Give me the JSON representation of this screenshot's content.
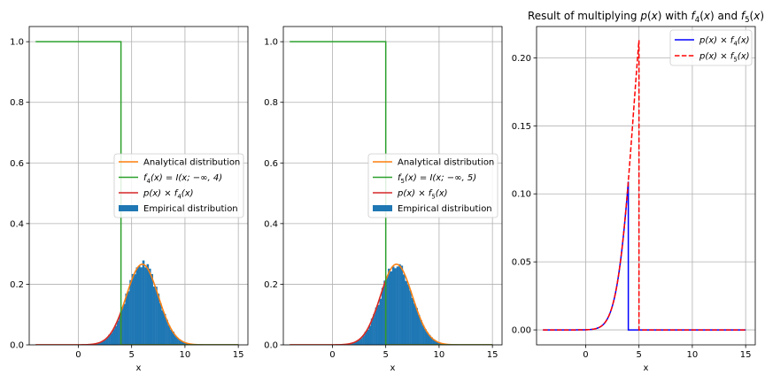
{
  "figure": {
    "background": "#ffffff"
  },
  "chart_data": [
    {
      "type": "histogram+line",
      "title": "",
      "xlabel": "x",
      "ylabel": "",
      "xlim": [
        -4.6,
        15.9
      ],
      "ylim": [
        0,
        1.05
      ],
      "xticks": [
        "0",
        "5",
        "10",
        "15"
      ],
      "yticks": [
        "0.0",
        "0.2",
        "0.4",
        "0.6",
        "0.8",
        "1.0"
      ],
      "grid": true,
      "legend_position": "center-right",
      "gaussian": {
        "mean": 6,
        "std": 1.5,
        "x_from": -4,
        "x_to": 15
      },
      "threshold": 4,
      "series": [
        {
          "name": "Analytical distribution",
          "kind": "pdf",
          "color": "#ff7f0e"
        },
        {
          "name": "$f_4(x) = I(x; -\\infty, 4)$",
          "label_main": "f",
          "label_sub": "4",
          "label_rest": "(x) = I(x; −∞, 4)",
          "kind": "step",
          "color": "#2ca02c"
        },
        {
          "name": "$p(x) \\times f_4(x)$",
          "label_main": "p(x) × f",
          "label_sub": "4",
          "label_rest": "(x)",
          "kind": "product",
          "color": "#d62728"
        },
        {
          "name": "Empirical distribution",
          "kind": "histogram",
          "color": "#1f77b4"
        }
      ]
    },
    {
      "type": "histogram+line",
      "title": "",
      "xlabel": "x",
      "ylabel": "",
      "xlim": [
        -4.6,
        15.9
      ],
      "ylim": [
        0,
        1.05
      ],
      "xticks": [
        "0",
        "5",
        "10",
        "15"
      ],
      "yticks": [
        "0.0",
        "0.2",
        "0.4",
        "0.6",
        "0.8",
        "1.0"
      ],
      "grid": true,
      "legend_position": "center-right",
      "gaussian": {
        "mean": 6,
        "std": 1.5,
        "x_from": -4,
        "x_to": 15
      },
      "threshold": 5,
      "series": [
        {
          "name": "Analytical distribution",
          "kind": "pdf",
          "color": "#ff7f0e"
        },
        {
          "name": "$f_5(x) = I(x; -\\infty, 5)$",
          "label_main": "f",
          "label_sub": "5",
          "label_rest": "(x) = I(x; −∞, 5)",
          "kind": "step",
          "color": "#2ca02c"
        },
        {
          "name": "$p(x) \\times f_5(x)$",
          "label_main": "p(x) × f",
          "label_sub": "5",
          "label_rest": "(x)",
          "kind": "product",
          "color": "#d62728"
        },
        {
          "name": "Empirical distribution",
          "kind": "histogram",
          "color": "#1f77b4"
        }
      ]
    },
    {
      "type": "line",
      "title": "Result of multiplying p(x) with f4(x) and f5(x)",
      "title_parts": [
        {
          "t": "Result of multiplying ",
          "style": "normal"
        },
        {
          "t": "p",
          "style": "italic"
        },
        {
          "t": "(",
          "style": "normal"
        },
        {
          "t": "x",
          "style": "italic"
        },
        {
          "t": ") with ",
          "style": "normal"
        },
        {
          "t": "f",
          "style": "italic"
        },
        {
          "t": "4",
          "style": "sub"
        },
        {
          "t": "(",
          "style": "normal"
        },
        {
          "t": "x",
          "style": "italic"
        },
        {
          "t": ") and ",
          "style": "normal"
        },
        {
          "t": "f",
          "style": "italic"
        },
        {
          "t": "5",
          "style": "sub"
        },
        {
          "t": "(",
          "style": "normal"
        },
        {
          "t": "x",
          "style": "italic"
        },
        {
          "t": ")",
          "style": "normal"
        }
      ],
      "xlabel": "x",
      "ylabel": "",
      "xlim": [
        -4.6,
        15.9
      ],
      "ylim": [
        -0.011,
        0.223
      ],
      "xticks": [
        "0",
        "5",
        "10",
        "15"
      ],
      "yticks": [
        "0.00",
        "0.05",
        "0.10",
        "0.15",
        "0.20"
      ],
      "grid": true,
      "legend_position": "top-right",
      "gaussian": {
        "mean": 6,
        "std": 1.5,
        "x_from": -4,
        "x_to": 15
      },
      "series": [
        {
          "name": "$p(x) \\times f_4(x)$",
          "label_main": "p(x) × f",
          "label_sub": "4",
          "label_rest": "(x)",
          "threshold": 4,
          "peak": 0.109,
          "color": "#0000ff",
          "dash": "solid"
        },
        {
          "name": "$p(x) \\times f_5(x)$",
          "label_main": "p(x) × f",
          "label_sub": "5",
          "label_rest": "(x)",
          "threshold": 5,
          "peak": 0.213,
          "color": "#ff0000",
          "dash": "dashed"
        }
      ]
    }
  ]
}
